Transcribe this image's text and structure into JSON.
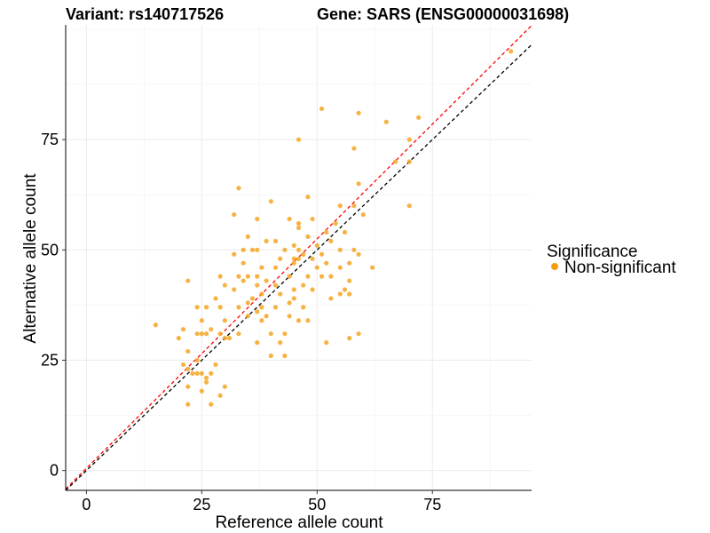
{
  "chart_data": {
    "type": "scatter",
    "title_left": "Variant: rs140717526",
    "title_right": "Gene: SARS (ENSG00000031698)",
    "xlabel": "Reference allele count",
    "ylabel": "Alternative allele count",
    "xlim": [
      -4.5,
      96.5
    ],
    "ylim": [
      -4.5,
      101
    ],
    "xticks": [
      0,
      25,
      50,
      75
    ],
    "yticks": [
      0,
      25,
      50,
      75
    ],
    "grid": true,
    "legend": {
      "title": "Significance",
      "position": "right",
      "entries": [
        {
          "label": "Non-significant",
          "color": "#f39c12"
        }
      ]
    },
    "reference_lines": [
      {
        "style": "dashed",
        "color": "#000000",
        "slope": 1,
        "intercept": 0
      },
      {
        "style": "dashed",
        "color": "#ff0000",
        "slope": 1.04,
        "intercept": 0.5
      }
    ],
    "point_color": "#f5a623",
    "points": [
      [
        92,
        95
      ],
      [
        51,
        82
      ],
      [
        59,
        81
      ],
      [
        72,
        80
      ],
      [
        65,
        79
      ],
      [
        46,
        75
      ],
      [
        70,
        75
      ],
      [
        58,
        73
      ],
      [
        67,
        70
      ],
      [
        70,
        70
      ],
      [
        33,
        64
      ],
      [
        59,
        65
      ],
      [
        48,
        62
      ],
      [
        40,
        61
      ],
      [
        55,
        60
      ],
      [
        58,
        60
      ],
      [
        70,
        60
      ],
      [
        32,
        58
      ],
      [
        60,
        58
      ],
      [
        37,
        57
      ],
      [
        44,
        57
      ],
      [
        46,
        56
      ],
      [
        49,
        57
      ],
      [
        54,
        56
      ],
      [
        46,
        55
      ],
      [
        52,
        54
      ],
      [
        56,
        54
      ],
      [
        35,
        53
      ],
      [
        48,
        53
      ],
      [
        39,
        52
      ],
      [
        41,
        52
      ],
      [
        45,
        51
      ],
      [
        50,
        51
      ],
      [
        53,
        52
      ],
      [
        34,
        50
      ],
      [
        36,
        50
      ],
      [
        37,
        50
      ],
      [
        43,
        50
      ],
      [
        46,
        50
      ],
      [
        55,
        50
      ],
      [
        58,
        50
      ],
      [
        32,
        49
      ],
      [
        47,
        49
      ],
      [
        51,
        49
      ],
      [
        59,
        49
      ],
      [
        42,
        48
      ],
      [
        45,
        48
      ],
      [
        46,
        48
      ],
      [
        49,
        48
      ],
      [
        52,
        47
      ],
      [
        34,
        47
      ],
      [
        45,
        47
      ],
      [
        57,
        47
      ],
      [
        38,
        46
      ],
      [
        41,
        46
      ],
      [
        50,
        46
      ],
      [
        55,
        46
      ],
      [
        62,
        46
      ],
      [
        29,
        44
      ],
      [
        33,
        44
      ],
      [
        35,
        44
      ],
      [
        37,
        44
      ],
      [
        44,
        44
      ],
      [
        48,
        44
      ],
      [
        51,
        44
      ],
      [
        53,
        44
      ],
      [
        39,
        43
      ],
      [
        57,
        43
      ],
      [
        22,
        43
      ],
      [
        34,
        43
      ],
      [
        30,
        42
      ],
      [
        37,
        42
      ],
      [
        41,
        42
      ],
      [
        47,
        42
      ],
      [
        32,
        41
      ],
      [
        45,
        41
      ],
      [
        49,
        41
      ],
      [
        56,
        41
      ],
      [
        38,
        40
      ],
      [
        42,
        40
      ],
      [
        55,
        40
      ],
      [
        57,
        40
      ],
      [
        28,
        39
      ],
      [
        36,
        39
      ],
      [
        45,
        39
      ],
      [
        53,
        39
      ],
      [
        35,
        38
      ],
      [
        38,
        37
      ],
      [
        44,
        38
      ],
      [
        29,
        37
      ],
      [
        33,
        37
      ],
      [
        37,
        36
      ],
      [
        41,
        37
      ],
      [
        47,
        37
      ],
      [
        24,
        37
      ],
      [
        26,
        37
      ],
      [
        35,
        35
      ],
      [
        39,
        35
      ],
      [
        44,
        35
      ],
      [
        46,
        34
      ],
      [
        25,
        34
      ],
      [
        30,
        34
      ],
      [
        38,
        34
      ],
      [
        48,
        34
      ],
      [
        15,
        33
      ],
      [
        21,
        32
      ],
      [
        27,
        32
      ],
      [
        33,
        31
      ],
      [
        40,
        31
      ],
      [
        43,
        31
      ],
      [
        24,
        31
      ],
      [
        25,
        31
      ],
      [
        26,
        31
      ],
      [
        29,
        31
      ],
      [
        30,
        30
      ],
      [
        20,
        30
      ],
      [
        31,
        30
      ],
      [
        57,
        30
      ],
      [
        59,
        31
      ],
      [
        37,
        29
      ],
      [
        42,
        29
      ],
      [
        52,
        29
      ],
      [
        22,
        27
      ],
      [
        40,
        26
      ],
      [
        43,
        26
      ],
      [
        21,
        24
      ],
      [
        24,
        25
      ],
      [
        28,
        24
      ],
      [
        22,
        23
      ],
      [
        24,
        22
      ],
      [
        25,
        22
      ],
      [
        27,
        22
      ],
      [
        23,
        22
      ],
      [
        26,
        21
      ],
      [
        22,
        19
      ],
      [
        30,
        19
      ],
      [
        25,
        18
      ],
      [
        29,
        17
      ],
      [
        22,
        15
      ],
      [
        27,
        15
      ],
      [
        26,
        20
      ]
    ]
  }
}
